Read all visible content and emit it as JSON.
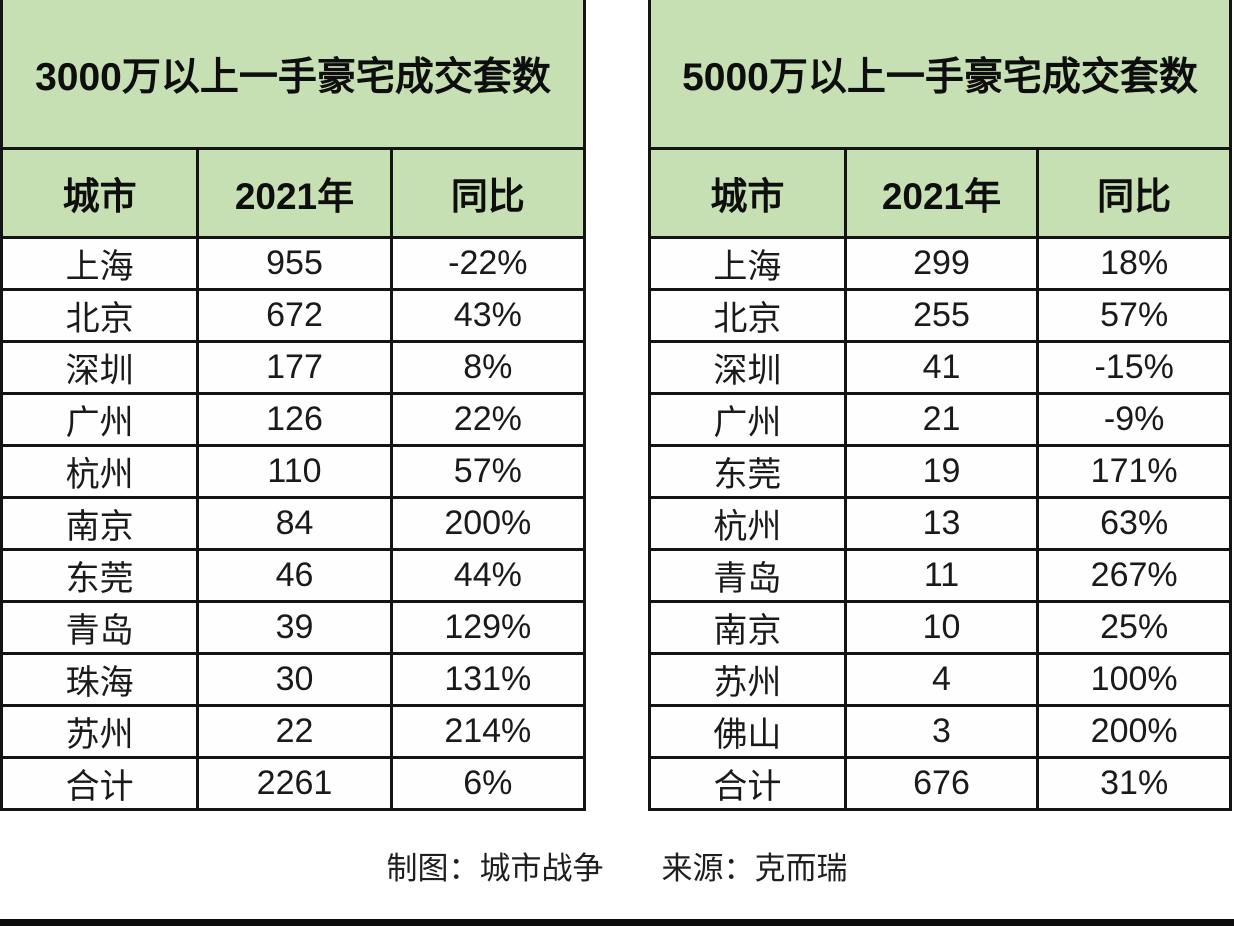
{
  "page": {
    "background": "#ffffff",
    "accent_green": "#c6e0b4",
    "border_color": "#141414",
    "text_color": "#161616"
  },
  "chart_data": [
    {
      "type": "table",
      "title": "3000万以上一手豪宅成交套数",
      "columns": [
        "城市",
        "2021年",
        "同比"
      ],
      "rows": [
        [
          "上海",
          955,
          "-22%"
        ],
        [
          "北京",
          672,
          "43%"
        ],
        [
          "深圳",
          177,
          "8%"
        ],
        [
          "广州",
          126,
          "22%"
        ],
        [
          "杭州",
          110,
          "57%"
        ],
        [
          "南京",
          84,
          "200%"
        ],
        [
          "东莞",
          46,
          "44%"
        ],
        [
          "青岛",
          39,
          "129%"
        ],
        [
          "珠海",
          30,
          "131%"
        ],
        [
          "苏州",
          22,
          "214%"
        ],
        [
          "合计",
          2261,
          "6%"
        ]
      ],
      "layout": {
        "header_bg": "#c6e0b4",
        "row_bg": "#fefefe",
        "grid": "on"
      }
    },
    {
      "type": "table",
      "title": "5000万以上一手豪宅成交套数",
      "columns": [
        "城市",
        "2021年",
        "同比"
      ],
      "rows": [
        [
          "上海",
          299,
          "18%"
        ],
        [
          "北京",
          255,
          "57%"
        ],
        [
          "深圳",
          41,
          "-15%"
        ],
        [
          "广州",
          21,
          "-9%"
        ],
        [
          "东莞",
          19,
          "171%"
        ],
        [
          "杭州",
          13,
          "63%"
        ],
        [
          "青岛",
          11,
          "267%"
        ],
        [
          "南京",
          10,
          "25%"
        ],
        [
          "苏州",
          4,
          "100%"
        ],
        [
          "佛山",
          3,
          "200%"
        ],
        [
          "合计",
          676,
          "31%"
        ]
      ],
      "layout": {
        "header_bg": "#c6e0b4",
        "row_bg": "#fefefe",
        "grid": "on"
      }
    }
  ],
  "footer": {
    "credit": "制图：城市战争",
    "source": "来源：克而瑞"
  }
}
